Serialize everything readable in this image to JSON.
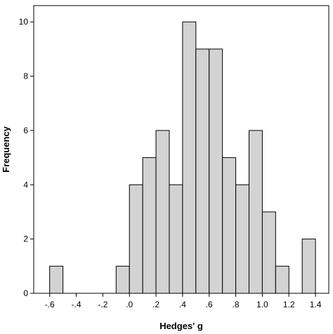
{
  "chart_data": {
    "type": "bar",
    "title": "",
    "xlabel": "Hedges' g",
    "ylabel": "Frequency",
    "bin_width": 0.1,
    "bins": [
      {
        "start": -0.6,
        "end": -0.5,
        "count": 1
      },
      {
        "start": -0.5,
        "end": -0.4,
        "count": 0
      },
      {
        "start": -0.4,
        "end": -0.3,
        "count": 0
      },
      {
        "start": -0.3,
        "end": -0.2,
        "count": 0
      },
      {
        "start": -0.2,
        "end": -0.1,
        "count": 0
      },
      {
        "start": -0.1,
        "end": 0.0,
        "count": 1
      },
      {
        "start": 0.0,
        "end": 0.1,
        "count": 4
      },
      {
        "start": 0.1,
        "end": 0.2,
        "count": 5
      },
      {
        "start": 0.2,
        "end": 0.3,
        "count": 6
      },
      {
        "start": 0.3,
        "end": 0.4,
        "count": 4
      },
      {
        "start": 0.4,
        "end": 0.5,
        "count": 10
      },
      {
        "start": 0.5,
        "end": 0.6,
        "count": 9
      },
      {
        "start": 0.6,
        "end": 0.7,
        "count": 9
      },
      {
        "start": 0.7,
        "end": 0.8,
        "count": 5
      },
      {
        "start": 0.8,
        "end": 0.9,
        "count": 4
      },
      {
        "start": 0.9,
        "end": 1.0,
        "count": 6
      },
      {
        "start": 1.0,
        "end": 1.1,
        "count": 3
      },
      {
        "start": 1.1,
        "end": 1.2,
        "count": 1
      },
      {
        "start": 1.2,
        "end": 1.3,
        "count": 0
      },
      {
        "start": 1.3,
        "end": 1.4,
        "count": 2
      }
    ],
    "xlim": [
      -0.72,
      1.5
    ],
    "ylim": [
      0,
      10.6
    ],
    "x_ticks": [
      {
        "value": -0.6,
        "label": "-.6"
      },
      {
        "value": -0.4,
        "label": "-.4"
      },
      {
        "value": -0.2,
        "label": "-.2"
      },
      {
        "value": 0.0,
        "label": ".0"
      },
      {
        "value": 0.2,
        "label": ".2"
      },
      {
        "value": 0.4,
        "label": ".4"
      },
      {
        "value": 0.6,
        "label": ".6"
      },
      {
        "value": 0.8,
        "label": ".8"
      },
      {
        "value": 1.0,
        "label": "1.0"
      },
      {
        "value": 1.2,
        "label": "1.2"
      },
      {
        "value": 1.4,
        "label": "1.4"
      }
    ],
    "y_ticks": [
      {
        "value": 0,
        "label": "0"
      },
      {
        "value": 2,
        "label": "2"
      },
      {
        "value": 4,
        "label": "4"
      },
      {
        "value": 6,
        "label": "6"
      },
      {
        "value": 8,
        "label": "8"
      },
      {
        "value": 10,
        "label": "10"
      }
    ],
    "grid": false,
    "legend": "none",
    "colors": {
      "bar_fill": "#d3d3d3",
      "bar_stroke": "#000000",
      "frame": "#000000",
      "background": "#ffffff"
    }
  }
}
